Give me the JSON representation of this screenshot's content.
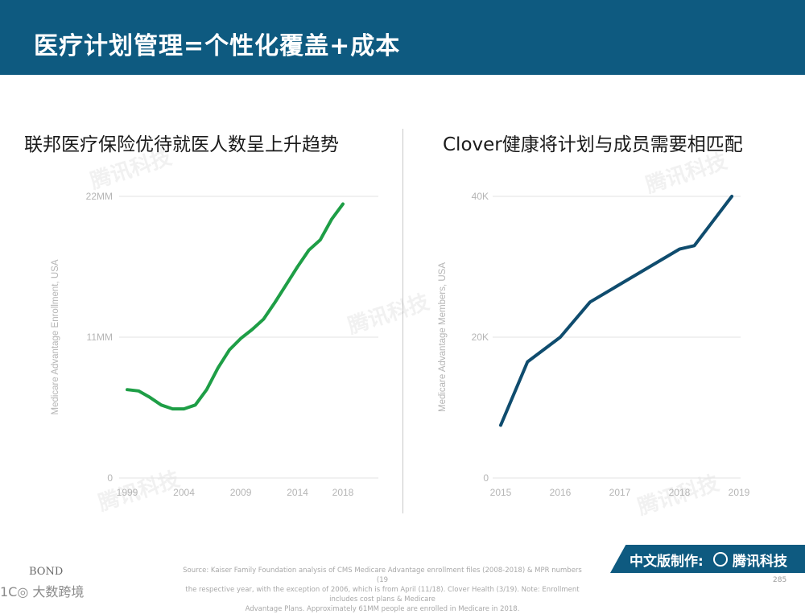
{
  "header": {
    "title": "医疗计划管理=个性化覆盖+成本"
  },
  "chart_data": [
    {
      "type": "line",
      "title": "联邦医疗保险优待就医人数呈上升趋势",
      "ylabel": "Medicare Advantage Enrollment, USA",
      "xlabel": "",
      "x_ticks": [
        "1999",
        "2004",
        "2009",
        "2014",
        "2018"
      ],
      "x_range": [
        1999,
        2018
      ],
      "y_ticks": [
        "0",
        "11MM",
        "22MM"
      ],
      "y_tick_values": [
        0,
        11,
        22
      ],
      "ylim": [
        0,
        22
      ],
      "color": "#1e9e46",
      "series": [
        {
          "name": "Medicare Advantage Enrollment",
          "x": [
            1999,
            2000,
            2001,
            2002,
            2003,
            2004,
            2005,
            2006,
            2007,
            2008,
            2009,
            2010,
            2011,
            2012,
            2013,
            2014,
            2015,
            2016,
            2017,
            2018
          ],
          "values": [
            6.9,
            6.8,
            6.3,
            5.7,
            5.4,
            5.4,
            5.7,
            6.9,
            8.6,
            10.0,
            10.9,
            11.6,
            12.4,
            13.7,
            15.1,
            16.5,
            17.8,
            18.6,
            20.2,
            21.4
          ]
        }
      ]
    },
    {
      "type": "line",
      "title": "Clover健康将计划与成员需要相匹配",
      "ylabel": "Medicare Advantage Members, USA",
      "xlabel": "",
      "x_ticks": [
        "2015",
        "2016",
        "2017",
        "2018",
        "2019"
      ],
      "x_range": [
        2015,
        2019
      ],
      "y_ticks": [
        "0",
        "20K",
        "40K"
      ],
      "y_tick_values": [
        0,
        20,
        40
      ],
      "ylim": [
        0,
        40
      ],
      "color": "#0f4c6e",
      "series": [
        {
          "name": "Clover Health Members",
          "x": [
            2015,
            2015.45,
            2016,
            2016.5,
            2017,
            2017.5,
            2018,
            2018.25,
            2018.88
          ],
          "values": [
            7.5,
            16.5,
            20,
            25,
            27.5,
            30,
            32.5,
            33,
            40
          ]
        }
      ]
    }
  ],
  "watermark": {
    "text": "腾讯科技"
  },
  "footer": {
    "source_line1": "Source: Kaiser Family Foundation analysis of CMS Medicare Advantage enrollment files (2008-2018) & MPR numbers (19",
    "source_line2": "the respective year, with the exception of 2006, which is from April (11/18). Clover Health (3/19). Note: Enrollment includes cost plans & Medicare",
    "source_line3": "Advantage Plans. Approximately 61MM people are enrolled in Medicare in 2018.",
    "badge_label": "中文版制作:",
    "badge_brand": "腾讯科技",
    "page_number": "285",
    "bond_logo": "BOND",
    "bottom_watermark": "1C◎ 大数跨境"
  }
}
